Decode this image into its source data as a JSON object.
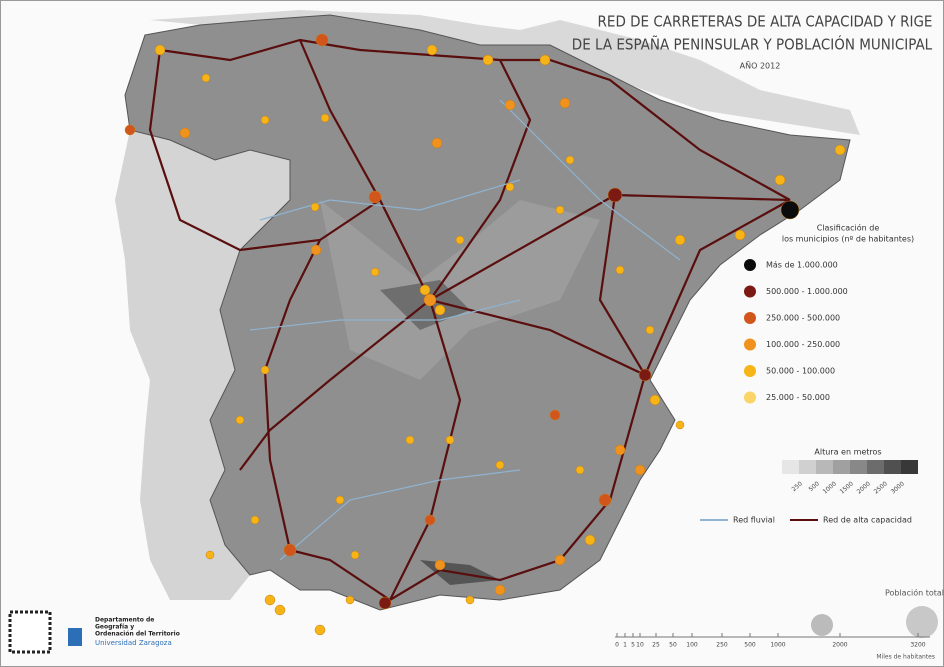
{
  "header": {
    "title_lines": [
      "RED DE CARRETERAS DE ALTA CAPACIDAD Y RIGE",
      "DE LA ESPAÑA PENINSULAR Y POBLACIÓN MUNICIPAL"
    ],
    "year": "AÑO 2012"
  },
  "legend": {
    "classes_title": [
      "Clasificación de",
      "los municipios (nº de habitantes)"
    ],
    "classes": [
      {
        "label": "Más de 1.000.000",
        "color": "#0b0b0b"
      },
      {
        "label": "500.000 - 1.000.000",
        "color": "#7a1a12"
      },
      {
        "label": "250.000 - 500.000",
        "color": "#d2561c"
      },
      {
        "label": "100.000 - 250.000",
        "color": "#f0921e"
      },
      {
        "label": "50.000 - 100.000",
        "color": "#f7b417"
      },
      {
        "label": "25.000 - 50.000",
        "color": "#fad466"
      }
    ],
    "altitude_title": "Altura en metros",
    "altitude_ticks": [
      "250",
      "500",
      "1000",
      "1500",
      "2000",
      "2500",
      "3000"
    ],
    "lines": [
      {
        "label": "Red fluvial",
        "color": "#8fb3d0"
      },
      {
        "label": "Red de alta capacidad",
        "color": "#5a0e0e"
      }
    ],
    "population_title": "Población total",
    "population_scale": [
      "0",
      "1",
      "5",
      "10",
      "25",
      "50",
      "100",
      "250",
      "500",
      "1000",
      "2000",
      "3200"
    ],
    "population_unit": "Miles de habitantes"
  },
  "institution": {
    "lines": [
      "Departamento de",
      "Geografía y",
      "Ordenación del Territorio"
    ],
    "university": "Universidad Zaragoza"
  }
}
